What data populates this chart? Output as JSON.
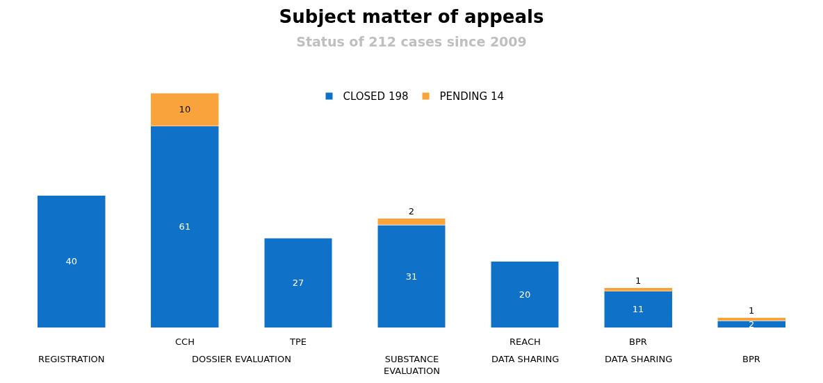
{
  "chart_data": {
    "type": "bar",
    "title": "Subject matter of appeals",
    "subtitle": "Status of 212 cases since 2009",
    "categories": [
      "\nREGISTRATION",
      "CCH",
      "TPE",
      "\nSUBSTANCE\nEVALUATION",
      "REACH\nDATA SHARING",
      "BPR\nDATA SHARING",
      "\nBPR"
    ],
    "series": [
      {
        "name": "CLOSED 198",
        "color": "#1071c8",
        "values": [
          40,
          61,
          27,
          31,
          20,
          11,
          2
        ]
      },
      {
        "name": "PENDING 14",
        "color": "#f8a33c",
        "values": [
          null,
          10,
          null,
          2,
          null,
          1,
          1
        ]
      }
    ],
    "annotations": [
      "DOSSIER EVALUATION"
    ],
    "stacked": true,
    "data_labels": true,
    "legend": "top"
  }
}
